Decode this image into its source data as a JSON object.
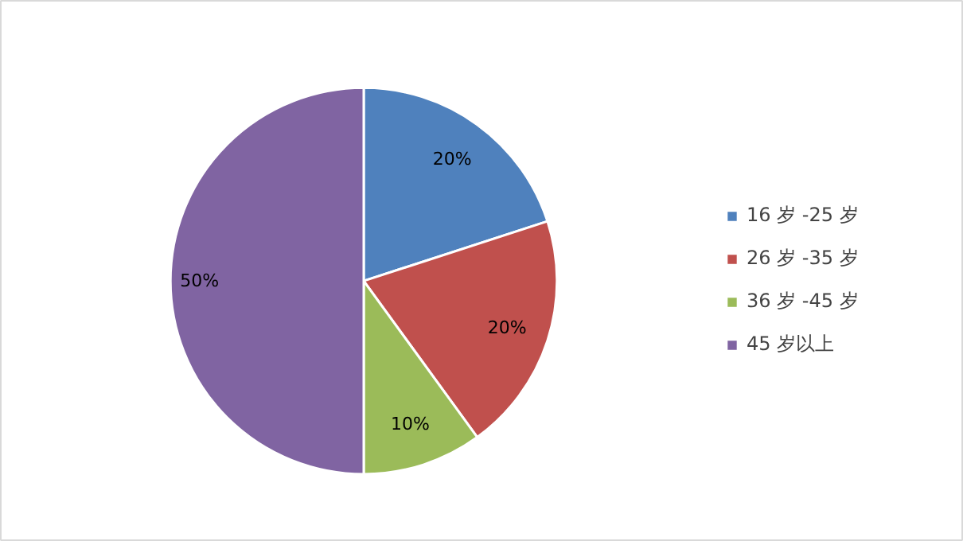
{
  "chart_data": {
    "type": "pie",
    "categories": [
      "16 岁 -25 岁",
      "26 岁 -35 岁",
      "36 岁 -45 岁",
      "45 岁以上"
    ],
    "values": [
      20,
      20,
      10,
      50
    ],
    "colors": [
      "#4f81bd",
      "#c0504d",
      "#9bbb59",
      "#8064a2"
    ],
    "value_labels": [
      "20%",
      "20%",
      "10%",
      "50%"
    ],
    "legend": "right"
  }
}
